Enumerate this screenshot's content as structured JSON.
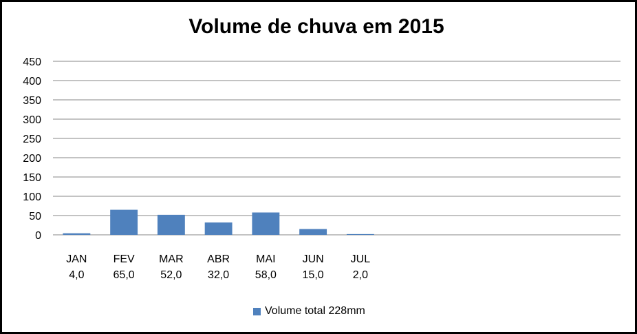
{
  "chart_data": {
    "type": "bar",
    "title": "Volume de chuva em 2015",
    "categories": [
      "JAN",
      "FEV",
      "MAR",
      "ABR",
      "MAI",
      "JUN",
      "JUL",
      "",
      "",
      "",
      "",
      ""
    ],
    "value_labels": [
      "4,0",
      "65,0",
      "52,0",
      "32,0",
      "58,0",
      "15,0",
      "2,0",
      "",
      "",
      "",
      "",
      ""
    ],
    "series": [
      {
        "name": "Volume total 228mm",
        "values": [
          4,
          65,
          52,
          32,
          58,
          15,
          2,
          null,
          null,
          null,
          null,
          null
        ]
      }
    ],
    "ylim": [
      0,
      450
    ],
    "yticks": [
      "0",
      "50",
      "100",
      "150",
      "200",
      "250",
      "300",
      "350",
      "400",
      "450"
    ],
    "xlabel": "",
    "ylabel": "",
    "grid": true,
    "legend": "bottom",
    "bar_color": "#4F81BD",
    "grid_color": "#878787"
  }
}
